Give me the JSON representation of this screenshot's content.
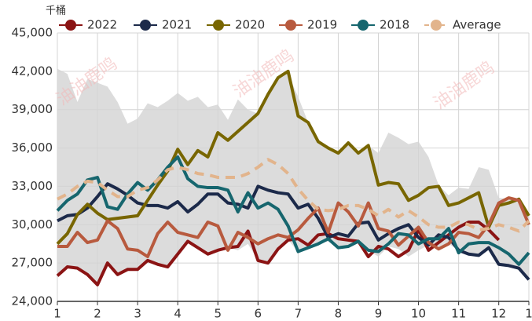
{
  "chart_data": {
    "type": "line",
    "unit_label": "千桶",
    "watermark": "油油鹿鸣",
    "x": [
      1,
      1.25,
      1.5,
      1.75,
      2,
      2.25,
      2.5,
      2.75,
      3,
      3.25,
      3.5,
      3.75,
      4,
      4.25,
      4.5,
      4.75,
      5,
      5.25,
      5.5,
      5.75,
      6,
      6.25,
      6.5,
      6.75,
      7,
      7.25,
      7.5,
      7.75,
      8,
      8.25,
      8.5,
      8.75,
      9,
      9.25,
      9.5,
      9.75,
      10,
      10.25,
      10.5,
      10.75,
      11,
      11.25,
      11.5,
      11.75,
      12,
      12.25,
      12.5,
      12.75
    ],
    "xlim": [
      1,
      12.75
    ],
    "xticks": [
      1,
      2,
      3,
      4,
      5,
      6,
      7,
      8,
      9,
      10,
      11,
      12,
      {
        "value": 12.75,
        "label": "1"
      }
    ],
    "ylim": [
      24000,
      45000
    ],
    "yticks": [
      {
        "value": 24000,
        "label": "24,000"
      },
      {
        "value": 27000,
        "label": "27,000"
      },
      {
        "value": 30000,
        "label": "30,000"
      },
      {
        "value": 33000,
        "label": "33,000"
      },
      {
        "value": 36000,
        "label": "36,000"
      },
      {
        "value": 39000,
        "label": "39,000"
      },
      {
        "value": 42000,
        "label": "42,000"
      },
      {
        "value": 45000,
        "label": "45,000"
      }
    ],
    "grid": true,
    "legend": "top",
    "band": {
      "color": "#dcdcdc",
      "upper": [
        42200,
        41800,
        39600,
        41400,
        41100,
        40800,
        39600,
        37900,
        38300,
        39500,
        39200,
        39700,
        40300,
        39700,
        40000,
        39200,
        39400,
        38200,
        39800,
        39000,
        38700,
        40200,
        41500,
        41800,
        40000,
        38000,
        36500,
        36000,
        35600,
        36400,
        35600,
        36200,
        35600,
        37200,
        36800,
        36300,
        36500,
        35300,
        33100,
        32300,
        32900,
        32800,
        34500,
        34300,
        32100,
        32000,
        31800,
        30700
      ],
      "lower": [
        26000,
        26700,
        26600,
        26100,
        25300,
        27000,
        26100,
        26500,
        26500,
        27200,
        26900,
        26700,
        27700,
        28700,
        28200,
        27700,
        28000,
        28200,
        28000,
        28500,
        27200,
        27000,
        28100,
        28800,
        27900,
        28200,
        28500,
        28700,
        28200,
        28300,
        28700,
        28000,
        27500,
        28300,
        28100,
        27500,
        28000,
        28400,
        28000,
        28500,
        28000,
        27700,
        27600,
        28200,
        26900,
        26800,
        26600,
        25700
      ]
    },
    "series": [
      {
        "name": "2022",
        "color": "#8b1414",
        "values": [
          26000,
          26700,
          26600,
          26100,
          25300,
          27000,
          26100,
          26500,
          26500,
          27200,
          26900,
          26700,
          27700,
          28700,
          28200,
          27700,
          28000,
          28200,
          28300,
          29500,
          27200,
          27000,
          28100,
          28800,
          28900,
          28400,
          29200,
          29300,
          28900,
          28800,
          28700,
          27500,
          28300,
          28100,
          27500,
          28000,
          29600,
          28000,
          28600,
          29200,
          29800,
          30200,
          30200,
          29600,
          28800,
          null,
          null,
          null
        ]
      },
      {
        "name": "2021",
        "color": "#1c2a4a",
        "values": [
          30300,
          30700,
          30800,
          31300,
          32200,
          33200,
          32800,
          32300,
          31700,
          31500,
          31500,
          31300,
          31800,
          31000,
          31600,
          32400,
          32400,
          31700,
          31600,
          31300,
          33000,
          32700,
          32500,
          32400,
          31300,
          31600,
          30500,
          29000,
          29300,
          29100,
          30100,
          30200,
          28800,
          29300,
          29700,
          30000,
          29000,
          28400,
          29200,
          29000,
          28000,
          27700,
          27600,
          28200,
          26900,
          26800,
          26600,
          25700
        ]
      },
      {
        "name": "2020",
        "color": "#786600",
        "values": [
          28500,
          29300,
          30800,
          31600,
          30900,
          30400,
          30500,
          30600,
          30700,
          31900,
          33100,
          34200,
          35900,
          34700,
          35800,
          35300,
          37200,
          36600,
          37300,
          38000,
          38700,
          40200,
          41500,
          42000,
          38500,
          38000,
          36500,
          36000,
          35600,
          36400,
          35600,
          36200,
          33100,
          33300,
          33200,
          31900,
          32300,
          32900,
          33000,
          31500,
          31700,
          32100,
          32500,
          29800,
          31500,
          31700,
          32000,
          30700
        ]
      },
      {
        "name": "2019",
        "color": "#b85a3e",
        "values": [
          28300,
          28300,
          29400,
          28600,
          28800,
          30300,
          29700,
          28100,
          28000,
          27500,
          29300,
          30200,
          29400,
          29200,
          29000,
          30200,
          29900,
          28000,
          29400,
          29000,
          28500,
          28900,
          29200,
          29000,
          29600,
          30500,
          31300,
          29400,
          31700,
          31000,
          29900,
          31700,
          29700,
          29500,
          28400,
          29100,
          29800,
          28600,
          28100,
          28500,
          29400,
          29300,
          29000,
          30000,
          31700,
          32100,
          31900,
          30000
        ]
      },
      {
        "name": "2018",
        "color": "#16666e",
        "values": [
          31100,
          31900,
          32400,
          33500,
          33700,
          31400,
          31200,
          32400,
          33300,
          32700,
          33500,
          34500,
          35300,
          33600,
          33000,
          32900,
          32900,
          32700,
          31000,
          32500,
          31300,
          31700,
          31200,
          29900,
          27900,
          28200,
          28500,
          28900,
          28200,
          28300,
          28700,
          28000,
          27900,
          28500,
          29300,
          29200,
          28500,
          28900,
          28900,
          29700,
          27800,
          28500,
          28600,
          28600,
          28200,
          27700,
          26900,
          27800
        ]
      },
      {
        "name": "Average",
        "color": "#e2b48c",
        "dashed": true,
        "values": [
          32000,
          32400,
          33000,
          33400,
          33300,
          32700,
          32200,
          32200,
          32700,
          32900,
          33500,
          34300,
          34500,
          34300,
          34000,
          33900,
          33700,
          33700,
          33700,
          34000,
          34500,
          35100,
          34700,
          34000,
          32800,
          31900,
          31200,
          31100,
          31200,
          31500,
          31500,
          31200,
          30700,
          31200,
          30600,
          31100,
          30600,
          30000,
          29800,
          29800,
          30200,
          30000,
          29600,
          29700,
          30000,
          29800,
          29500,
          30300
        ]
      }
    ]
  }
}
